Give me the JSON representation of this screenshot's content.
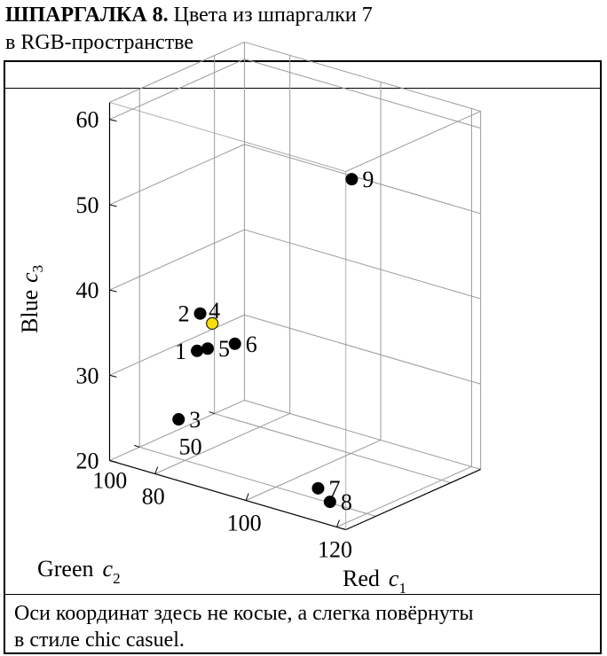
{
  "heading": {
    "bold": "ШПАРГАЛКА 8.",
    "rest": " Цвета из шпаргалки 7",
    "line2": "в RGB-пространстве"
  },
  "caption": {
    "line1": "Оси координат здесь не косые, а слегка повёрнуты",
    "line2": "в стиле chic casuel."
  },
  "chart_data": {
    "type": "scatter",
    "projection": "3d",
    "grid": true,
    "axes": {
      "x": {
        "label": "Red",
        "var": "c",
        "sub": "1",
        "ticks": [
          80,
          100,
          120
        ],
        "range": [
          70,
          122
        ]
      },
      "y": {
        "label": "Green",
        "var": "c",
        "sub": "2",
        "ticks": [
          50,
          100
        ],
        "range": [
          30,
          120
        ]
      },
      "z": {
        "label": "Blue",
        "var": "c",
        "sub": "3",
        "ticks": [
          20,
          30,
          40,
          50,
          60
        ],
        "range": [
          20,
          62
        ]
      }
    },
    "points": [
      {
        "label": "1",
        "red": 82,
        "green": 98,
        "blue": 33,
        "color": "#000000"
      },
      {
        "label": "2",
        "red": 84,
        "green": 102,
        "blue": 38,
        "color": "#000000"
      },
      {
        "label": "3",
        "red": 72,
        "green": 80,
        "blue": 22,
        "color": "#000000"
      },
      {
        "label": "4",
        "red": 86,
        "green": 100,
        "blue": 37,
        "color": "#f5e000"
      },
      {
        "label": "5",
        "red": 84,
        "green": 97,
        "blue": 33.5,
        "color": "#000000"
      },
      {
        "label": "6",
        "red": 90,
        "green": 97,
        "blue": 35,
        "color": "#000000"
      },
      {
        "label": "7",
        "red": 106,
        "green": 90,
        "blue": 20,
        "color": "#000000"
      },
      {
        "label": "8",
        "red": 104,
        "green": 76,
        "blue": 17,
        "color": "#000000"
      },
      {
        "label": "9",
        "red": 120,
        "green": 110,
        "blue": 60,
        "color": "#000000"
      }
    ]
  }
}
